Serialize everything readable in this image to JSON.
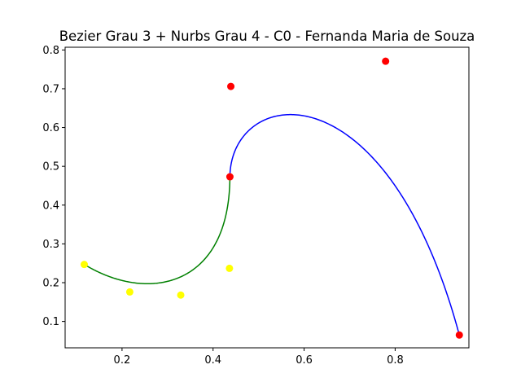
{
  "chart_data": {
    "type": "line",
    "title": "Bezier Grau 3 + Nurbs Grau 4 - C0 - Fernanda Maria de Souza",
    "xlabel": "",
    "ylabel": "",
    "xlim": [
      0.075,
      0.962
    ],
    "ylim": [
      0.032,
      0.807
    ],
    "x_ticks": [
      {
        "value": 0.2,
        "label": "0.2"
      },
      {
        "value": 0.4,
        "label": "0.4"
      },
      {
        "value": 0.6,
        "label": "0.6"
      },
      {
        "value": 0.8,
        "label": "0.8"
      }
    ],
    "y_ticks": [
      {
        "value": 0.1,
        "label": "0.1"
      },
      {
        "value": 0.2,
        "label": "0.2"
      },
      {
        "value": 0.3,
        "label": "0.3"
      },
      {
        "value": 0.4,
        "label": "0.4"
      },
      {
        "value": 0.5,
        "label": "0.5"
      },
      {
        "value": 0.6,
        "label": "0.6"
      },
      {
        "value": 0.7,
        "label": "0.7"
      },
      {
        "value": 0.8,
        "label": "0.8"
      }
    ],
    "grid": false,
    "legend": false,
    "series": [
      {
        "kind": "bezier-curve",
        "degree": 3,
        "color": "#008000",
        "control_points": [
          [
            0.117,
            0.247
          ],
          [
            0.217,
            0.176
          ],
          [
            0.329,
            0.168
          ],
          [
            0.436,
            0.237
          ],
          [
            0.437,
            0.473
          ]
        ]
      },
      {
        "kind": "nurbs-curve",
        "degree": 4,
        "color": "#0000ff",
        "control_points": [
          [
            0.437,
            0.473
          ],
          [
            0.439,
            0.706
          ],
          [
            0.779,
            0.771
          ],
          [
            0.941,
            0.065
          ]
        ]
      },
      {
        "kind": "control-points",
        "color": "#ffff00",
        "points": [
          [
            0.117,
            0.247
          ],
          [
            0.217,
            0.176
          ],
          [
            0.329,
            0.168
          ],
          [
            0.436,
            0.237
          ]
        ]
      },
      {
        "kind": "control-points",
        "color": "#ff0000",
        "points": [
          [
            0.437,
            0.473
          ],
          [
            0.439,
            0.706
          ],
          [
            0.779,
            0.771
          ],
          [
            0.941,
            0.065
          ]
        ]
      }
    ]
  }
}
